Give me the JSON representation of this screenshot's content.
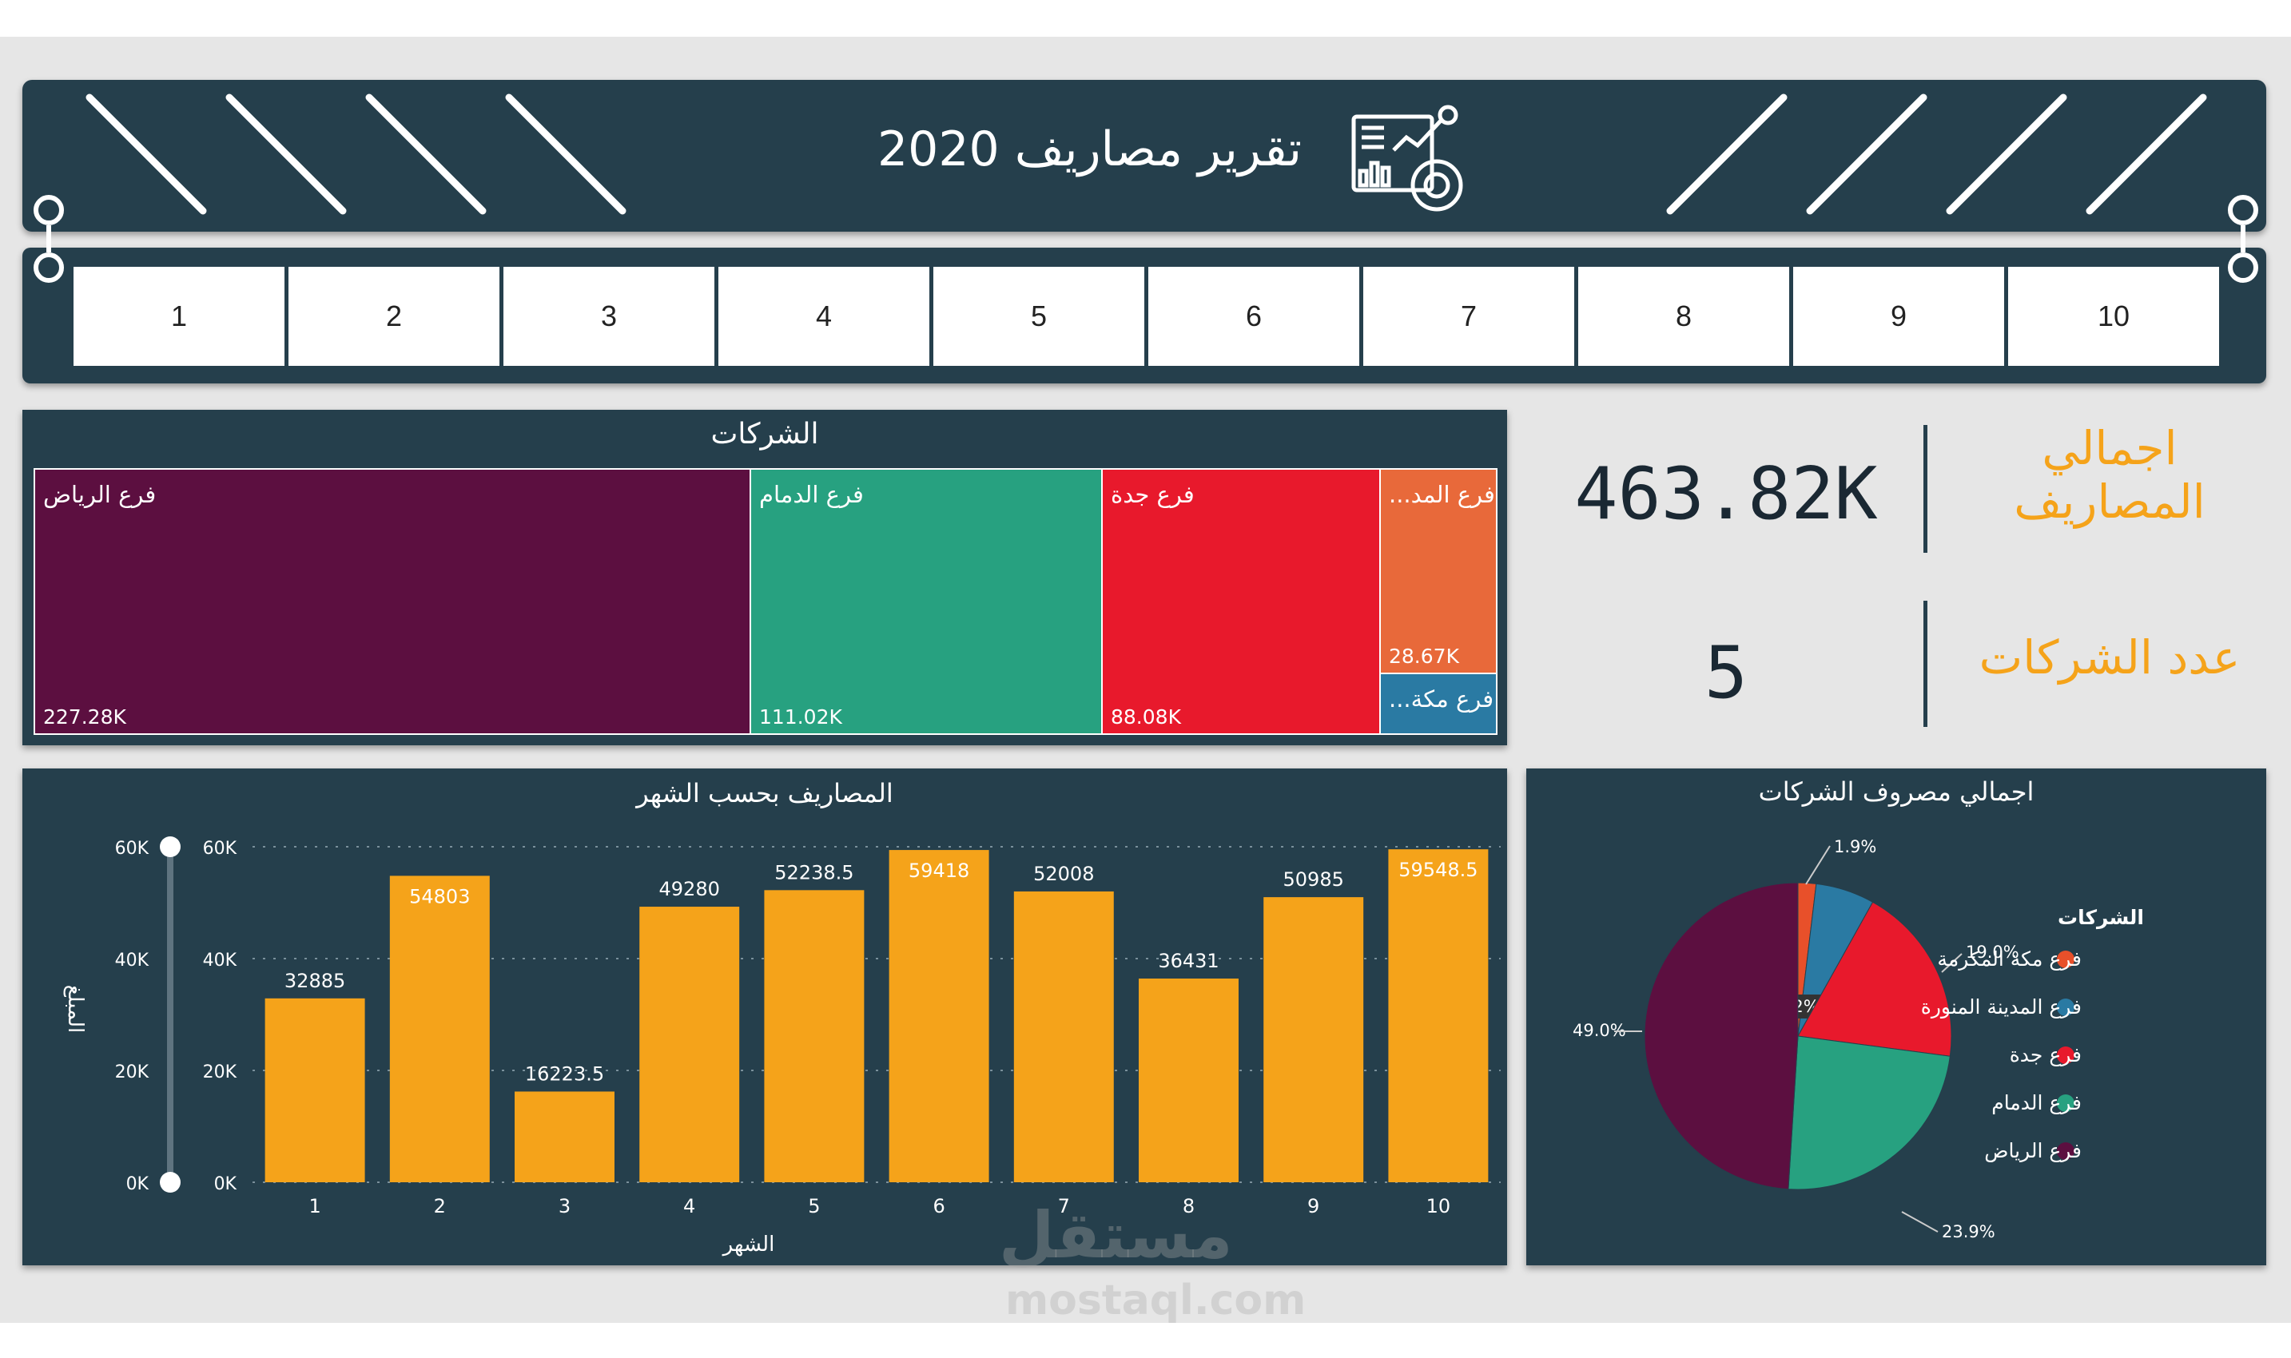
{
  "header": {
    "title": "تقرير مصاريف 2020",
    "icon": "report-analytics-icon"
  },
  "slicer": {
    "items": [
      "1",
      "2",
      "3",
      "4",
      "5",
      "6",
      "7",
      "8",
      "9",
      "10"
    ]
  },
  "treemap": {
    "title": "الشركات",
    "tiles": [
      {
        "name": "فرع الرياض",
        "value": "227.28K",
        "color": "#5c0f40"
      },
      {
        "name": "فرع الدمام",
        "value": "111.02K",
        "color": "#27a180"
      },
      {
        "name": "فرع جدة",
        "value": "88.08K",
        "color": "#e8192c"
      },
      {
        "name": "...فرع المد",
        "value": "28.67K",
        "color": "#e8693a"
      },
      {
        "name": "...فرع مكة",
        "value": "",
        "color": "#2a7aa3"
      }
    ]
  },
  "kpis": {
    "total_label_line1": "اجمالي",
    "total_label_line2": "المصاريف",
    "total_value": "463.82K",
    "count_label": "عدد الشركات",
    "count_value": "5"
  },
  "chart_data": [
    {
      "type": "bar",
      "title": "المصاريف بحسب الشهر",
      "xlabel": "الشهر",
      "ylabel": "المبلغ",
      "categories": [
        "1",
        "2",
        "3",
        "4",
        "5",
        "6",
        "7",
        "8",
        "9",
        "10"
      ],
      "values": [
        32885,
        54803,
        16223.5,
        49280,
        52238.5,
        59418,
        52008,
        36431,
        50985,
        59548.5
      ],
      "value_labels": [
        "32885",
        "54803",
        "16223.5",
        "49280",
        "52238.5",
        "59418",
        "52008",
        "36431",
        "50985",
        "59548.5"
      ],
      "ylim": [
        0,
        60000
      ],
      "yticks": [
        "0K",
        "20K",
        "40K",
        "60K"
      ],
      "grid": true,
      "bar_color": "#f5a31a",
      "range_slider": {
        "min": "0K",
        "max": "60K",
        "ticks": [
          "0K",
          "20K",
          "40K",
          "60K"
        ]
      }
    },
    {
      "type": "pie",
      "title": "اجمالي مصروف الشركات",
      "legend_title": "الشركات",
      "legend_position": "right",
      "slices": [
        {
          "name": "فرع مكة المكرمة",
          "value": 1.9,
          "label": "1.9%",
          "color": "#e8502a"
        },
        {
          "name": "فرع المدينة المنورة",
          "value": 6.2,
          "label": "6.2%",
          "color": "#2a7aa3"
        },
        {
          "name": "فرع جدة",
          "value": 19.0,
          "label": "19.0%",
          "color": "#e8192c"
        },
        {
          "name": "فرع الدمام",
          "value": 23.9,
          "label": "23.9%",
          "color": "#27a180"
        },
        {
          "name": "فرع الرياض",
          "value": 49.0,
          "label": "49.0%",
          "color": "#5c0f40"
        }
      ]
    }
  ],
  "watermark": {
    "arabic": "مستقل",
    "latin": "mostaql.com"
  }
}
